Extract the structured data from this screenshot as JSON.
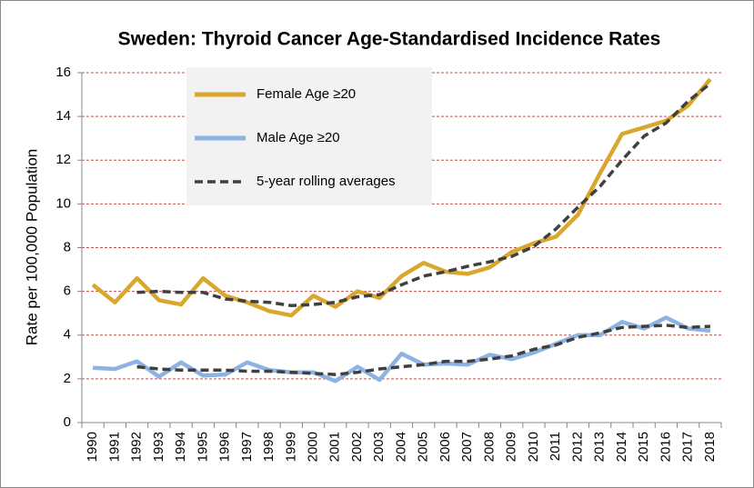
{
  "chart_data": {
    "type": "line",
    "title": "Sweden: Thyroid Cancer Age-Standardised Incidence Rates",
    "y_label": "Rate per 100,000 Population",
    "categories": [
      "1990",
      "1991",
      "1992",
      "1993",
      "1994",
      "1995",
      "1996",
      "1997",
      "1998",
      "1999",
      "2000",
      "2001",
      "2002",
      "2003",
      "2004",
      "2005",
      "2006",
      "2007",
      "2008",
      "2009",
      "2010",
      "2011",
      "2012",
      "2013",
      "2014",
      "2015",
      "2016",
      "2017",
      "2018"
    ],
    "series": [
      {
        "name": "Female Age ≥20",
        "color": "#d9a62e",
        "style": "solid",
        "values": [
          6.3,
          5.5,
          6.6,
          5.6,
          5.4,
          6.6,
          5.8,
          5.5,
          5.1,
          4.9,
          5.8,
          5.3,
          6.0,
          5.7,
          6.7,
          7.3,
          6.9,
          6.8,
          7.1,
          7.8,
          8.2,
          8.5,
          9.5,
          11.4,
          13.2,
          13.5,
          13.8,
          14.5,
          15.7
        ]
      },
      {
        "name": "Male Age ≥20",
        "color": "#8db3e2",
        "style": "solid",
        "values": [
          2.5,
          2.45,
          2.8,
          2.1,
          2.75,
          2.15,
          2.2,
          2.75,
          2.4,
          2.3,
          2.3,
          1.9,
          2.55,
          1.95,
          3.15,
          2.65,
          2.7,
          2.65,
          3.1,
          2.9,
          3.2,
          3.6,
          4.0,
          4.0,
          4.6,
          4.3,
          4.8,
          4.3,
          4.2
        ]
      },
      {
        "name": "5-year rolling averages",
        "color": "#404040",
        "style": "dashed",
        "values": [
          null,
          null,
          5.95,
          6.0,
          5.95,
          5.95,
          5.65,
          5.55,
          5.5,
          5.35,
          5.4,
          5.5,
          5.75,
          5.85,
          6.3,
          6.7,
          6.9,
          7.15,
          7.35,
          7.6,
          8.05,
          8.85,
          9.85,
          10.8,
          12.0,
          13.1,
          13.7,
          14.7,
          15.5
        ]
      },
      {
        "color": "#404040",
        "style": "dashed",
        "values": [
          null,
          null,
          2.55,
          2.45,
          2.4,
          2.4,
          2.4,
          2.35,
          2.35,
          2.3,
          2.25,
          2.2,
          2.3,
          2.45,
          2.55,
          2.65,
          2.8,
          2.8,
          2.9,
          3.05,
          3.35,
          3.55,
          3.9,
          4.1,
          4.35,
          4.4,
          4.45,
          4.35,
          4.4
        ]
      }
    ],
    "ylim": [
      0,
      16
    ],
    "yticks": [
      0,
      2,
      4,
      6,
      8,
      10,
      12,
      14,
      16
    ],
    "grid": true,
    "legend": "top-left"
  }
}
